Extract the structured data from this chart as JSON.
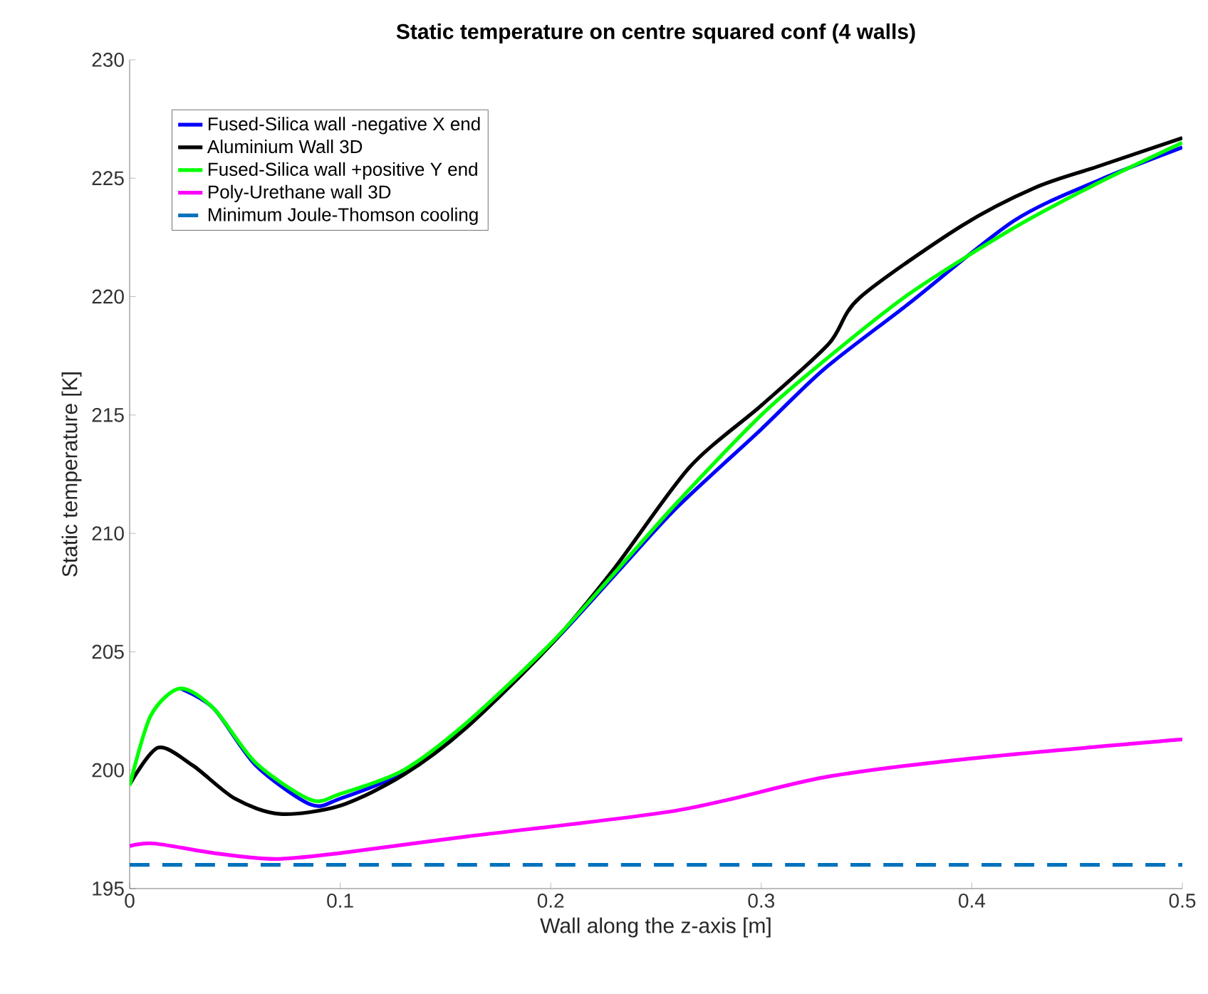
{
  "chart_data": {
    "type": "line",
    "title": "Static temperature on centre squared conf (4 walls)",
    "xlabel": "Wall along the z-axis [m]",
    "ylabel": "Static temperature [K]",
    "xlim": [
      0,
      0.5
    ],
    "xticks": [
      0,
      0.1,
      0.2,
      0.3,
      0.4,
      0.5
    ],
    "ylim": [
      195,
      230
    ],
    "yticks": [
      195,
      200,
      205,
      210,
      215,
      220,
      225,
      230
    ],
    "grid": false,
    "legend": "top left",
    "line_style": "solid",
    "series": [
      {
        "name": "Fused-Silica wall -negative X end",
        "color": "#0000ff",
        "x": [
          0.024,
          0.04,
          0.06,
          0.086,
          0.1,
          0.13,
          0.16,
          0.2,
          0.23,
          0.26,
          0.3,
          0.33,
          0.37,
          0.42,
          0.46,
          0.5
        ],
        "values": [
          203.46,
          202.6,
          200.2,
          198.55,
          198.8,
          199.9,
          201.9,
          205.3,
          208.2,
          211.1,
          214.4,
          216.95,
          219.7,
          223.2,
          224.9,
          226.3
        ]
      },
      {
        "name": "Aluminium Wall 3D",
        "color": "#000000",
        "x": [
          0,
          0.0135,
          0.03,
          0.05,
          0.0715,
          0.1,
          0.13,
          0.16,
          0.2,
          0.23,
          0.266,
          0.3,
          0.332,
          0.3467,
          0.395,
          0.43,
          0.46,
          0.5
        ],
        "values": [
          199.4,
          200.95,
          200.2,
          198.8,
          198.15,
          198.5,
          199.8,
          201.8,
          205.3,
          208.5,
          212.8,
          215.4,
          218.0,
          219.95,
          222.98,
          224.6,
          225.5,
          226.7
        ]
      },
      {
        "name": "Fused-Silica wall +positive Y end",
        "color": "#00ff00",
        "x": [
          0,
          0.01,
          0.024,
          0.04,
          0.06,
          0.086,
          0.1,
          0.13,
          0.16,
          0.2,
          0.23,
          0.26,
          0.3,
          0.33,
          0.37,
          0.42,
          0.46,
          0.5
        ],
        "values": [
          199.35,
          202.3,
          203.45,
          202.6,
          200.3,
          198.75,
          199.0,
          200.0,
          202.0,
          205.35,
          208.3,
          211.3,
          215.0,
          217.3,
          220.1,
          222.9,
          224.8,
          226.5
        ]
      },
      {
        "name": "Poly-Urethane wall 3D",
        "color": "#ff00ff",
        "x": [
          0,
          0.012,
          0.04,
          0.069,
          0.1,
          0.16,
          0.26,
          0.33,
          0.4,
          0.5
        ],
        "values": [
          196.8,
          196.9,
          196.5,
          196.25,
          196.5,
          197.2,
          198.3,
          199.7,
          200.5,
          201.3
        ]
      },
      {
        "name": "Minimum Joule-Thomson cooling",
        "color": "#0072bd",
        "line_style": "dashed",
        "x": [
          0,
          0.5
        ],
        "values": [
          196,
          196
        ]
      }
    ]
  }
}
